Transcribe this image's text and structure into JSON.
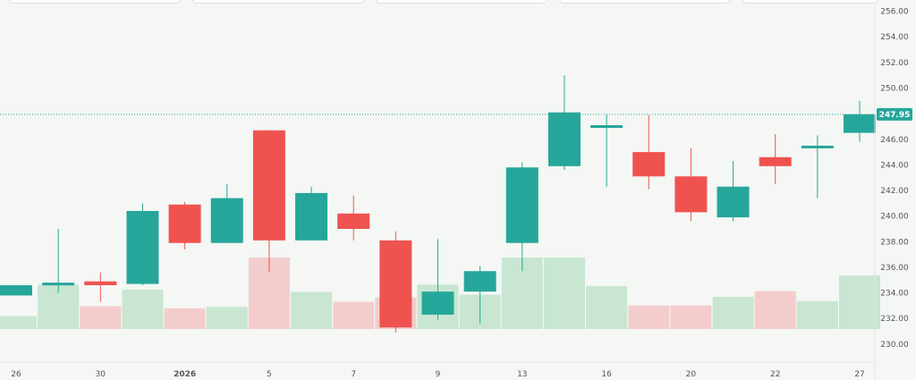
{
  "chart_data": {
    "type": "candlestick",
    "title": "",
    "xlabel": "",
    "ylabel": "",
    "ylim": [
      229.5,
      256.6
    ],
    "y_ticks": [
      "230.00",
      "232.00",
      "234.00",
      "236.00",
      "238.00",
      "240.00",
      "242.00",
      "244.00",
      "246.00",
      "248.00",
      "250.00",
      "252.00",
      "254.00",
      "256.00"
    ],
    "x_ticks": [
      {
        "i": 0,
        "label": "26"
      },
      {
        "i": 2,
        "label": "30"
      },
      {
        "i": 4,
        "label": "2026"
      },
      {
        "i": 6,
        "label": "5"
      },
      {
        "i": 8,
        "label": "7"
      },
      {
        "i": 10,
        "label": "9"
      },
      {
        "i": 12,
        "label": "13"
      },
      {
        "i": 14,
        "label": "16"
      },
      {
        "i": 16,
        "label": "20"
      },
      {
        "i": 18,
        "label": "22"
      },
      {
        "i": 20,
        "label": "27"
      }
    ],
    "last_price": "247.95",
    "last_price_value": 247.95,
    "grid": false,
    "candles": [
      {
        "o": 233.8,
        "h": 234.6,
        "l": 233.8,
        "c": 234.6
      },
      {
        "o": 234.6,
        "h": 239.0,
        "l": 234.0,
        "c": 234.8
      },
      {
        "o": 234.9,
        "h": 235.6,
        "l": 233.3,
        "c": 234.6
      },
      {
        "o": 234.7,
        "h": 241.0,
        "l": 234.6,
        "c": 240.4
      },
      {
        "o": 240.9,
        "h": 241.1,
        "l": 237.4,
        "c": 237.9
      },
      {
        "o": 237.9,
        "h": 242.5,
        "l": 237.9,
        "c": 241.4
      },
      {
        "o": 246.7,
        "h": 246.7,
        "l": 235.6,
        "c": 238.1
      },
      {
        "o": 238.1,
        "h": 242.3,
        "l": 238.1,
        "c": 241.8
      },
      {
        "o": 240.2,
        "h": 241.6,
        "l": 238.1,
        "c": 239.0
      },
      {
        "o": 238.1,
        "h": 238.8,
        "l": 230.9,
        "c": 231.3
      },
      {
        "o": 232.3,
        "h": 238.2,
        "l": 231.9,
        "c": 234.1
      },
      {
        "o": 234.1,
        "h": 236.1,
        "l": 231.6,
        "c": 235.7
      },
      {
        "o": 237.9,
        "h": 244.2,
        "l": 235.7,
        "c": 243.8
      },
      {
        "o": 243.9,
        "h": 251.0,
        "l": 243.6,
        "c": 248.1
      },
      {
        "o": 246.9,
        "h": 247.9,
        "l": 242.3,
        "c": 247.1
      },
      {
        "o": 245.0,
        "h": 247.9,
        "l": 242.1,
        "c": 243.1
      },
      {
        "o": 243.1,
        "h": 245.3,
        "l": 239.6,
        "c": 240.3
      },
      {
        "o": 239.9,
        "h": 244.3,
        "l": 239.6,
        "c": 242.3
      },
      {
        "o": 244.6,
        "h": 246.4,
        "l": 242.5,
        "c": 243.9
      },
      {
        "o": 245.3,
        "h": 246.3,
        "l": 241.4,
        "c": 245.5
      },
      {
        "o": 246.5,
        "h": 249.0,
        "l": 245.8,
        "c": 247.95
      }
    ],
    "volume": [
      0.18,
      0.62,
      0.32,
      0.55,
      0.29,
      0.31,
      1.0,
      0.52,
      0.38,
      0.44,
      0.62,
      0.48,
      1.0,
      1.0,
      0.6,
      0.33,
      0.33,
      0.45,
      0.53,
      0.39,
      0.75
    ]
  },
  "colors": {
    "up": "#26a69a",
    "down": "#ef5350",
    "up_volume": "#c8e6d2",
    "down_volume": "#f3cdcc",
    "background": "#f4f7f4",
    "axis_text": "#555555",
    "price_label_bg": "#26a69a",
    "price_label_text": "#ffffff"
  }
}
